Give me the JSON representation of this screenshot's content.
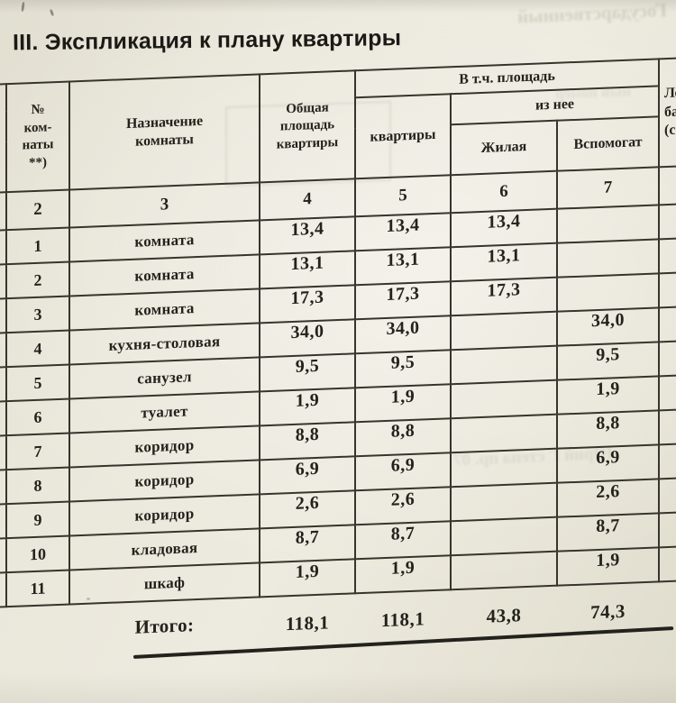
{
  "title": "III. Экспликация к плану квартиры",
  "table": {
    "group_header": "В т.ч. площадь",
    "subgroup_header": "из нее",
    "columns": {
      "room_no": "№\nком-\nнаты\n**)",
      "purpose": "Назначение\nкомнаты",
      "total_area": "Общая\nплощадь\nквартиры",
      "apartment": "квартиры",
      "living": "Жилая",
      "auxiliary": "Вспомогат",
      "loggia_clipped": "Ло\nба\n(с"
    },
    "column_numbers": {
      "no": "2",
      "purpose": "3",
      "total": "4",
      "apt": "5",
      "living": "6",
      "aux": "7"
    },
    "rows": [
      {
        "no": "1",
        "name": "комната",
        "total": "13,4",
        "apt": "13,4",
        "living": "13,4",
        "aux": ""
      },
      {
        "no": "2",
        "name": "комната",
        "total": "13,1",
        "apt": "13,1",
        "living": "13,1",
        "aux": ""
      },
      {
        "no": "3",
        "name": "комната",
        "total": "17,3",
        "apt": "17,3",
        "living": "17,3",
        "aux": ""
      },
      {
        "no": "4",
        "name": "кухня-столовая",
        "total": "34,0",
        "apt": "34,0",
        "living": "",
        "aux": "34,0"
      },
      {
        "no": "5",
        "name": "санузел",
        "total": "9,5",
        "apt": "9,5",
        "living": "",
        "aux": "9,5"
      },
      {
        "no": "6",
        "name": "туалет",
        "total": "1,9",
        "apt": "1,9",
        "living": "",
        "aux": "1,9"
      },
      {
        "no": "7",
        "name": "коридор",
        "total": "8,8",
        "apt": "8,8",
        "living": "",
        "aux": "8,8"
      },
      {
        "no": "8",
        "name": "коридор",
        "total": "6,9",
        "apt": "6,9",
        "living": "",
        "aux": "6,9"
      },
      {
        "no": "9",
        "name": "коридор",
        "total": "2,6",
        "apt": "2,6",
        "living": "",
        "aux": "2,6"
      },
      {
        "no": "10",
        "name": "кладовая",
        "total": "8,7",
        "apt": "8,7",
        "living": "",
        "aux": "8,7"
      },
      {
        "no": "11",
        "name": "шкаф",
        "total": "1,9",
        "apt": "1,9",
        "living": "",
        "aux": "1,9"
      }
    ],
    "totals": {
      "label": "Итого:",
      "total": "118,1",
      "apt": "118,1",
      "living": "43,8",
      "aux": "74,3"
    }
  },
  "artifacts": {
    "bleed_top": "Государственный",
    "bleed_header": "ный номер",
    "bleed_mid": "Юрий Г степа пр. 07"
  },
  "colors": {
    "paper": "#e9e6da",
    "ink": "#24221c",
    "line": "#36342c"
  }
}
